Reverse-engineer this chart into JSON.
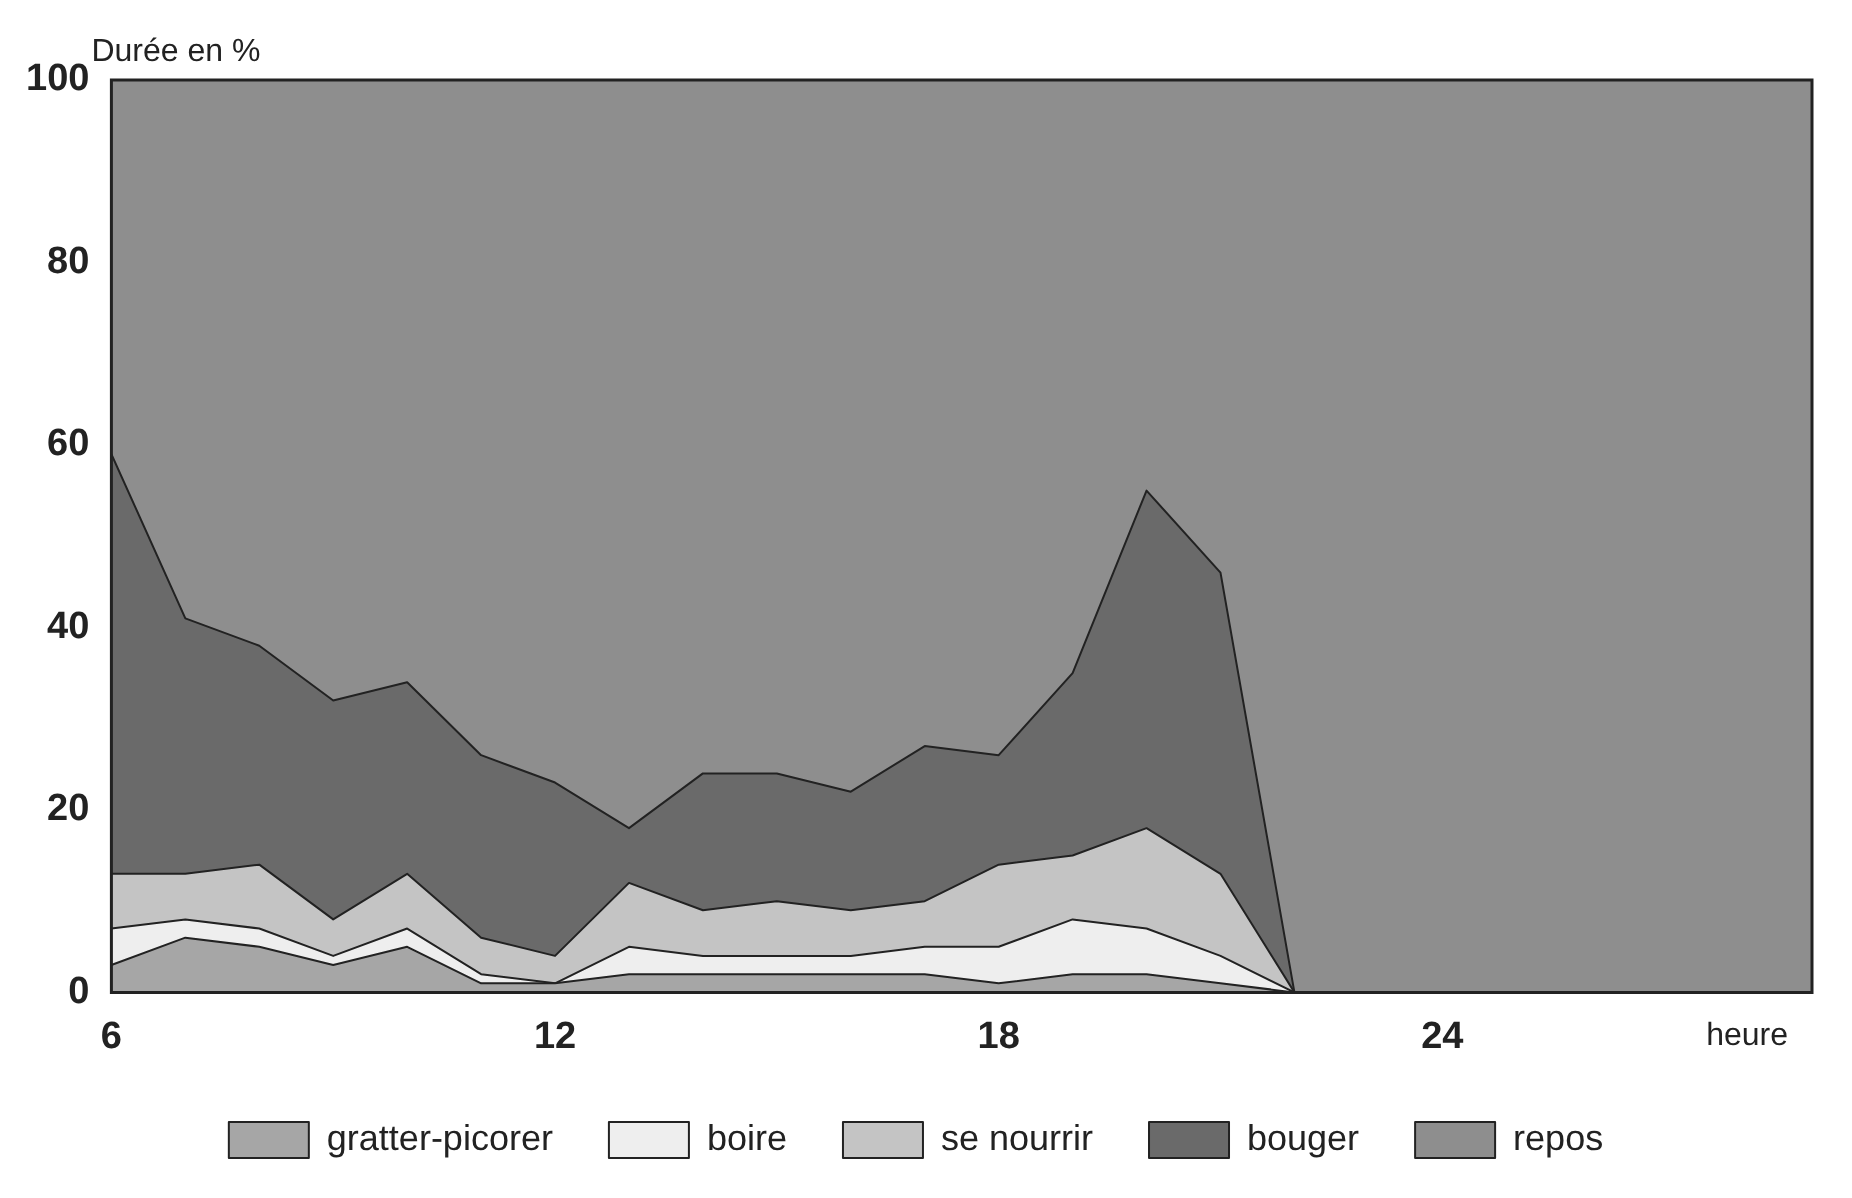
{
  "chart_data": {
    "type": "area",
    "stacked": true,
    "ylabel": "Durée en %",
    "xlabel": "heure",
    "x": [
      6,
      7,
      8,
      9,
      10,
      11,
      12,
      13,
      14,
      15,
      16,
      17,
      18,
      19,
      20,
      21,
      22,
      29
    ],
    "xlim": [
      6,
      29
    ],
    "xticks": [
      6,
      12,
      18,
      24
    ],
    "ylim": [
      0,
      100
    ],
    "yticks": [
      0,
      20,
      40,
      60,
      80,
      100
    ],
    "grid": false,
    "legend": "bottom",
    "series": [
      {
        "name": "gratter-picorer",
        "color": "#a6a6a6",
        "values": [
          3,
          6,
          5,
          3,
          5,
          1,
          1,
          2,
          2,
          2,
          2,
          2,
          1,
          2,
          2,
          1,
          0,
          0
        ]
      },
      {
        "name": "boire",
        "color": "#eeeeee",
        "values": [
          4,
          2,
          2,
          1,
          2,
          1,
          0,
          3,
          2,
          2,
          2,
          3,
          4,
          6,
          5,
          3,
          0,
          0
        ]
      },
      {
        "name": "se nourrir",
        "color": "#c4c4c4",
        "values": [
          6,
          5,
          7,
          4,
          6,
          4,
          3,
          7,
          5,
          6,
          5,
          5,
          9,
          7,
          11,
          9,
          0,
          0
        ]
      },
      {
        "name": "bouger",
        "color": "#6a6a6a",
        "values": [
          46,
          28,
          24,
          24,
          21,
          20,
          19,
          6,
          15,
          14,
          13,
          17,
          12,
          20,
          37,
          33,
          0,
          0
        ]
      },
      {
        "name": "repos",
        "color": "#8e8e8e",
        "values": [
          41,
          59,
          62,
          68,
          66,
          74,
          77,
          82,
          76,
          76,
          78,
          73,
          74,
          65,
          45,
          54,
          100,
          100
        ]
      }
    ]
  }
}
